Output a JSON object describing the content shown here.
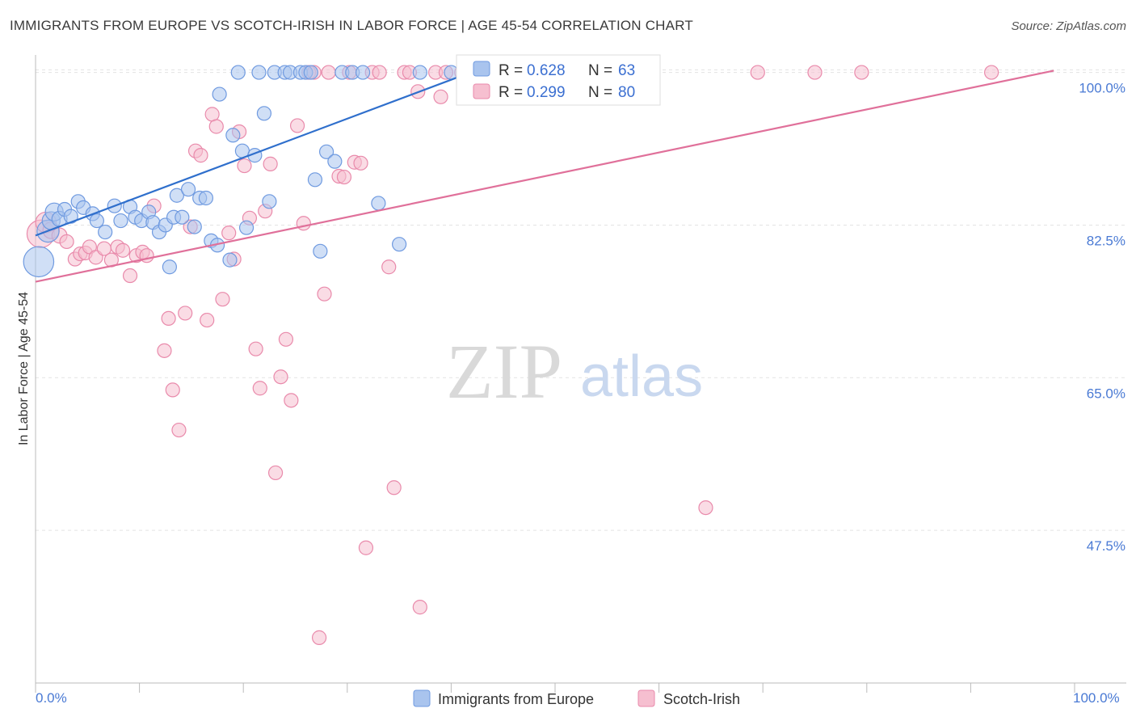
{
  "title": "IMMIGRANTS FROM EUROPE VS SCOTCH-IRISH IN LABOR FORCE | AGE 45-54 CORRELATION CHART",
  "source": "Source: ZipAtlas.com",
  "watermark": {
    "zip": "ZIP",
    "atlas": "atlas"
  },
  "colors": {
    "blue": "#a9c4ee",
    "blue_stroke": "#6f9ae0",
    "blue_line": "#2f6fcc",
    "pink": "#f6bfd0",
    "pink_stroke": "#e98aab",
    "pink_line": "#e0709a",
    "grid": "#e3e3e3",
    "tick_text": "#4a7ad4"
  },
  "legend": {
    "series": [
      {
        "r_label": "R = ",
        "r_value": "0.628",
        "n_label": "N = ",
        "n_value": "63"
      },
      {
        "r_label": "R = ",
        "r_value": "0.299",
        "n_label": "N = ",
        "n_value": "80"
      }
    ]
  },
  "bottom_legend": [
    "Immigrants from Europe",
    "Scotch-Irish"
  ],
  "chart_data": {
    "type": "scatter",
    "title": "IMMIGRANTS FROM EUROPE VS SCOTCH-IRISH IN LABOR FORCE | AGE 45-54 CORRELATION CHART",
    "xlabel": "",
    "ylabel": "In Labor Force | Age 45-54",
    "xlim": [
      0,
      100
    ],
    "ylim": [
      30,
      102
    ],
    "x_tick_labels": [
      "0.0%",
      "100.0%"
    ],
    "y_ticks": [
      47.5,
      65.0,
      82.5,
      100.0
    ],
    "y_tick_labels": [
      "47.5%",
      "65.0%",
      "82.5%",
      "100.0%"
    ],
    "grid": true,
    "legend_placement": "top-center",
    "series": [
      {
        "name": "Immigrants from Europe",
        "r": 0.628,
        "n": 63,
        "trend": {
          "x": [
            0,
            43
          ],
          "y": [
            81.3,
            100.5
          ]
        },
        "points": [
          [
            0.3,
            78.3,
            2.2
          ],
          [
            1.2,
            81.8,
            1.6
          ],
          [
            1.5,
            83.0,
            1.3
          ],
          [
            1.8,
            84.0,
            1.3
          ],
          [
            2.3,
            83.2,
            1.1
          ],
          [
            2.8,
            84.3,
            1.0
          ],
          [
            3.4,
            83.5,
            1.0
          ],
          [
            4.1,
            85.2,
            1.0
          ],
          [
            4.6,
            84.5,
            1.0
          ],
          [
            5.5,
            83.8,
            1.0
          ],
          [
            5.9,
            83.0,
            1.0
          ],
          [
            6.7,
            81.7,
            1.0
          ],
          [
            7.6,
            84.7,
            1.0
          ],
          [
            8.2,
            83.0,
            1.0
          ],
          [
            9.1,
            84.6,
            1.0
          ],
          [
            9.6,
            83.4,
            1.0
          ],
          [
            10.2,
            83.0,
            1.0
          ],
          [
            10.9,
            84.0,
            1.0
          ],
          [
            11.3,
            82.8,
            1.0
          ],
          [
            11.9,
            81.7,
            1.0
          ],
          [
            12.5,
            82.5,
            1.0
          ],
          [
            12.9,
            77.7,
            1.0
          ],
          [
            13.3,
            83.4,
            1.0
          ],
          [
            13.6,
            85.9,
            1.0
          ],
          [
            14.1,
            83.4,
            1.0
          ],
          [
            14.7,
            86.6,
            1.0
          ],
          [
            15.3,
            82.3,
            1.0
          ],
          [
            15.8,
            85.6,
            1.0
          ],
          [
            16.4,
            85.6,
            1.0
          ],
          [
            16.9,
            80.7,
            1.0
          ],
          [
            17.5,
            80.2,
            1.0
          ],
          [
            17.7,
            97.5,
            1.0
          ],
          [
            18.7,
            78.5,
            1.0
          ],
          [
            19.0,
            92.8,
            1.0
          ],
          [
            19.5,
            100.0,
            1.0
          ],
          [
            19.9,
            91.0,
            1.0
          ],
          [
            20.3,
            82.2,
            1.0
          ],
          [
            21.1,
            90.5,
            1.0
          ],
          [
            21.5,
            100.0,
            1.0
          ],
          [
            22.0,
            95.3,
            1.0
          ],
          [
            22.5,
            85.2,
            1.0
          ],
          [
            23.0,
            100.0,
            1.0
          ],
          [
            24.0,
            100.0,
            1.0
          ],
          [
            24.5,
            100.0,
            1.0
          ],
          [
            25.5,
            100.0,
            1.0
          ],
          [
            26.0,
            100.0,
            1.0
          ],
          [
            26.5,
            100.0,
            1.0
          ],
          [
            26.9,
            87.7,
            1.0
          ],
          [
            27.4,
            79.5,
            1.0
          ],
          [
            28.0,
            90.9,
            1.0
          ],
          [
            28.8,
            89.8,
            1.0
          ],
          [
            29.5,
            100.0,
            1.0
          ],
          [
            30.5,
            100.0,
            1.0
          ],
          [
            31.5,
            100.0,
            1.0
          ],
          [
            33.0,
            85.0,
            1.0
          ],
          [
            35.0,
            80.3,
            1.0
          ],
          [
            37.0,
            100.0,
            1.0
          ],
          [
            40.0,
            100.0,
            1.0
          ],
          [
            43.0,
            100.0,
            1.0
          ],
          [
            47.0,
            100.0,
            1.0
          ],
          [
            53.0,
            100.0,
            1.0
          ],
          [
            55.0,
            100.0,
            1.0
          ],
          [
            58.0,
            100.0,
            1.0
          ]
        ]
      },
      {
        "name": "Scotch-Irish",
        "r": 0.299,
        "n": 80,
        "trend": {
          "x": [
            0,
            98
          ],
          "y": [
            76.0,
            100.2
          ]
        },
        "points": [
          [
            0.5,
            81.5,
            2.0
          ],
          [
            1.0,
            82.8,
            1.5
          ],
          [
            1.5,
            81.9,
            1.2
          ],
          [
            2.3,
            81.3,
            1.1
          ],
          [
            3.0,
            80.6,
            1.0
          ],
          [
            3.8,
            78.6,
            1.0
          ],
          [
            4.3,
            79.2,
            1.0
          ],
          [
            4.8,
            79.3,
            1.0
          ],
          [
            5.2,
            80.0,
            1.0
          ],
          [
            5.8,
            78.8,
            1.0
          ],
          [
            6.6,
            79.8,
            1.0
          ],
          [
            7.3,
            78.5,
            1.0
          ],
          [
            7.9,
            80.0,
            1.0
          ],
          [
            8.4,
            79.6,
            1.0
          ],
          [
            9.1,
            76.7,
            1.0
          ],
          [
            9.7,
            79.0,
            1.0
          ],
          [
            10.3,
            79.4,
            1.0
          ],
          [
            10.7,
            79.0,
            1.0
          ],
          [
            11.4,
            84.7,
            1.0
          ],
          [
            12.4,
            68.1,
            1.0
          ],
          [
            12.8,
            71.8,
            1.0
          ],
          [
            13.2,
            63.6,
            1.0
          ],
          [
            13.8,
            59.0,
            1.0
          ],
          [
            14.4,
            72.4,
            1.0
          ],
          [
            14.9,
            82.3,
            1.0
          ],
          [
            15.4,
            91.0,
            1.0
          ],
          [
            15.9,
            90.5,
            1.0
          ],
          [
            16.5,
            71.6,
            1.0
          ],
          [
            17.0,
            95.2,
            1.0
          ],
          [
            17.4,
            93.8,
            1.0
          ],
          [
            18.0,
            74.0,
            1.0
          ],
          [
            18.6,
            81.6,
            1.0
          ],
          [
            19.1,
            78.6,
            1.0
          ],
          [
            19.6,
            93.2,
            1.0
          ],
          [
            20.1,
            89.3,
            1.0
          ],
          [
            20.6,
            83.3,
            1.0
          ],
          [
            21.2,
            68.3,
            1.0
          ],
          [
            21.6,
            63.8,
            1.0
          ],
          [
            22.1,
            84.1,
            1.0
          ],
          [
            22.6,
            89.5,
            1.0
          ],
          [
            23.1,
            54.1,
            1.0
          ],
          [
            23.6,
            65.1,
            1.0
          ],
          [
            24.1,
            69.4,
            1.0
          ],
          [
            24.6,
            62.4,
            1.0
          ],
          [
            25.2,
            93.9,
            1.0
          ],
          [
            25.8,
            82.7,
            1.0
          ],
          [
            26.3,
            100.0,
            1.0
          ],
          [
            26.8,
            100.0,
            1.0
          ],
          [
            27.3,
            35.2,
            1.0
          ],
          [
            27.8,
            74.6,
            1.0
          ],
          [
            28.2,
            100.0,
            1.0
          ],
          [
            29.2,
            88.1,
            1.0
          ],
          [
            29.7,
            88.0,
            1.0
          ],
          [
            30.2,
            100.0,
            1.0
          ],
          [
            30.7,
            89.7,
            1.0
          ],
          [
            31.3,
            89.6,
            1.0
          ],
          [
            31.8,
            45.5,
            1.0
          ],
          [
            32.4,
            100.0,
            1.0
          ],
          [
            33.1,
            100.0,
            1.0
          ],
          [
            34.0,
            77.7,
            1.0
          ],
          [
            34.5,
            52.4,
            1.0
          ],
          [
            35.5,
            100.0,
            1.0
          ],
          [
            36.0,
            100.0,
            1.0
          ],
          [
            36.8,
            97.8,
            1.0
          ],
          [
            37.0,
            38.7,
            1.0
          ],
          [
            38.5,
            100.0,
            1.0
          ],
          [
            39.0,
            97.2,
            1.0
          ],
          [
            39.5,
            100.0,
            1.0
          ],
          [
            41.0,
            100.0,
            1.0
          ],
          [
            43.0,
            100.0,
            1.0
          ],
          [
            45.0,
            100.0,
            1.0
          ],
          [
            46.5,
            100.0,
            1.0
          ],
          [
            49.5,
            100.0,
            1.0
          ],
          [
            51.0,
            100.0,
            1.0
          ],
          [
            53.0,
            100.0,
            1.0
          ],
          [
            64.5,
            50.1,
            1.0
          ],
          [
            69.5,
            100.0,
            1.0
          ],
          [
            75.0,
            100.0,
            1.0
          ],
          [
            79.5,
            100.0,
            1.0
          ],
          [
            92.0,
            100.0,
            1.0
          ]
        ]
      }
    ]
  }
}
